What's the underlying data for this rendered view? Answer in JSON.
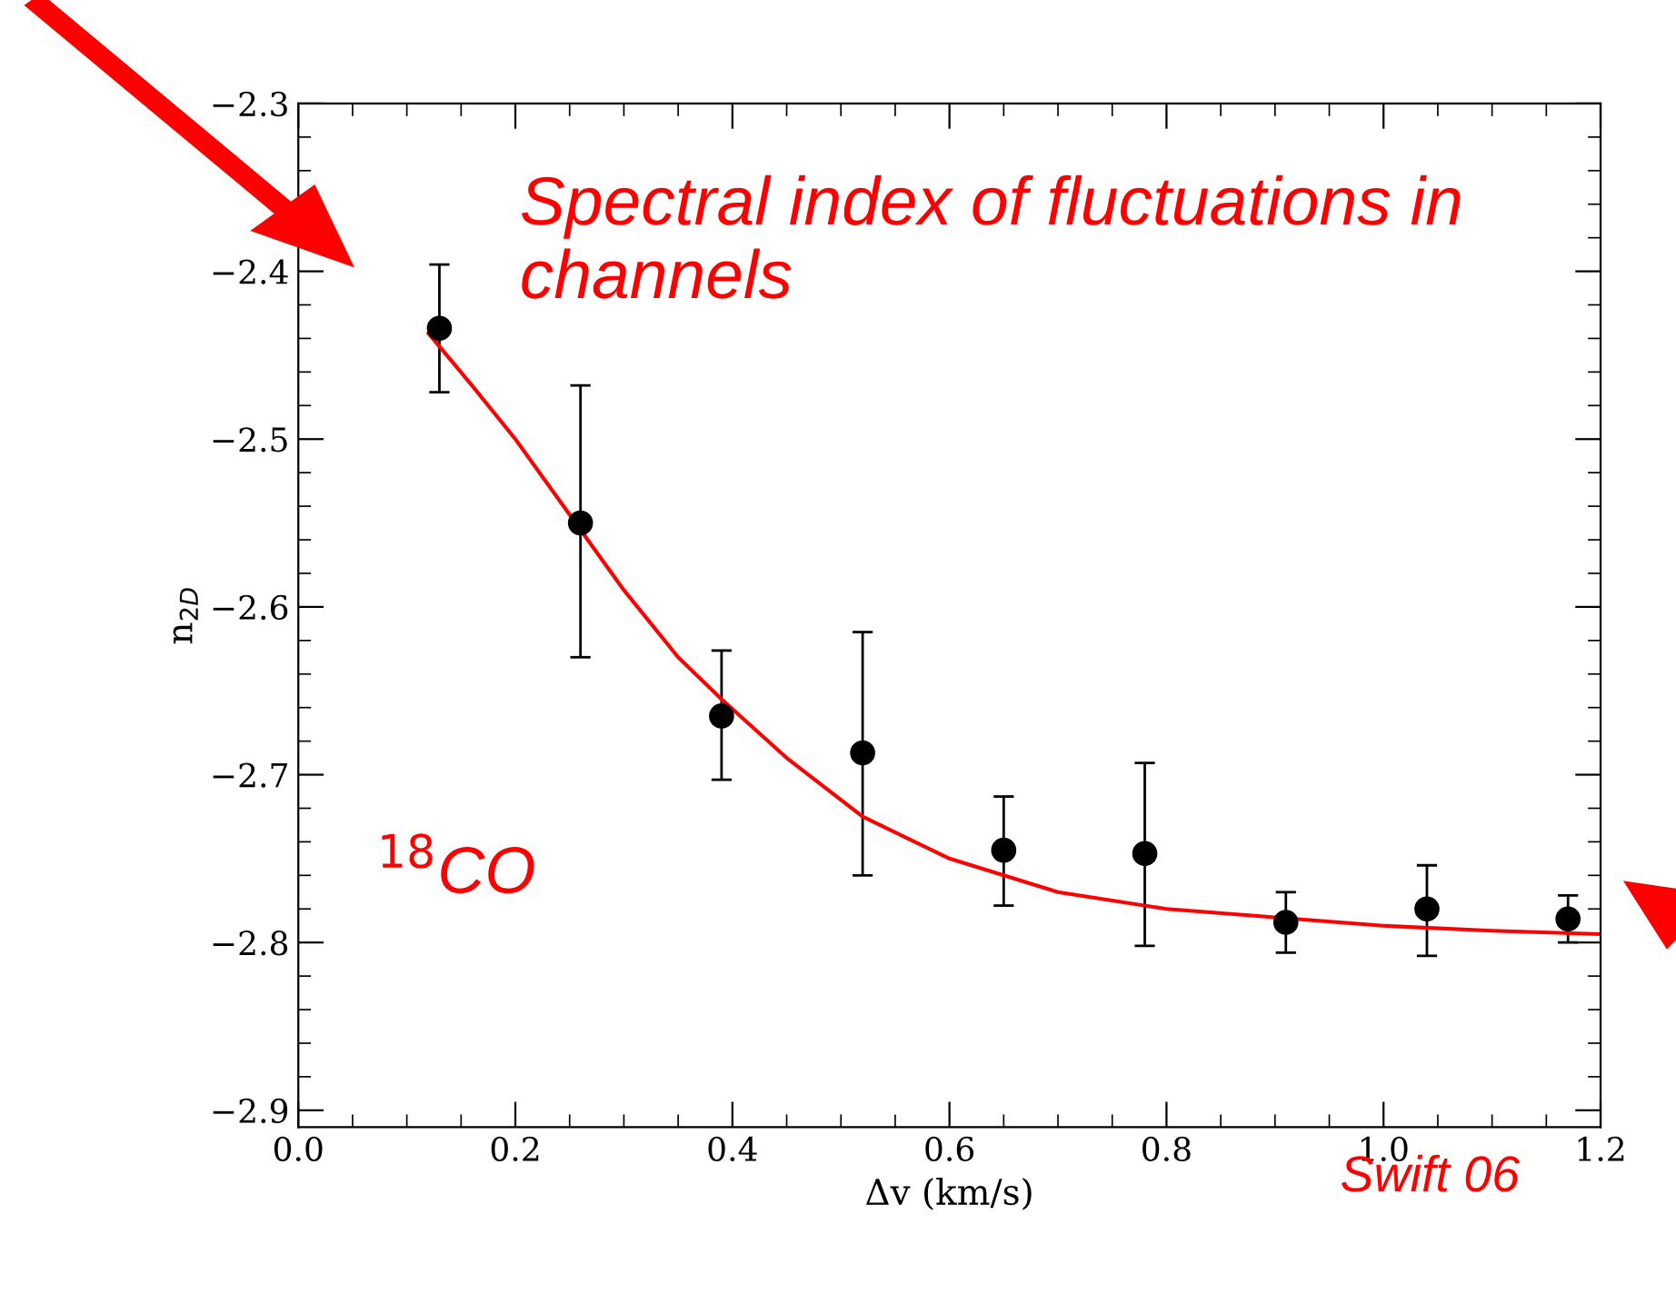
{
  "chart_data": {
    "type": "scatter",
    "xlabel": "Δv (km/s)",
    "ylabel": "n$_{2D}$",
    "xlim": [
      0,
      1.2
    ],
    "xticks": [
      {
        "value": 0,
        "label": "0.0"
      },
      0.2,
      0.4,
      0.6,
      0.8,
      {
        "value": 1,
        "label": "1.0"
      },
      1.2
    ],
    "ylim": [
      -2.91,
      -2.3
    ],
    "yticks": [
      {
        "value": -2.3,
        "label": "−2.3"
      },
      {
        "value": -2.4,
        "label": "−2.4"
      },
      {
        "value": -2.5,
        "label": "−2.5"
      },
      {
        "value": -2.6,
        "label": "−2.6"
      },
      {
        "value": -2.7,
        "label": "−2.7"
      },
      {
        "value": -2.8,
        "label": "−2.8"
      },
      {
        "value": -2.9,
        "label": "−2.9"
      }
    ],
    "grid": false,
    "legend": false,
    "series": [
      {
        "color": "#000000",
        "marker": "circle",
        "x": [
          0.13,
          0.26,
          0.39,
          0.52,
          0.65,
          0.78,
          0.91,
          1.04,
          1.17
        ],
        "values": [
          -2.434,
          -2.55,
          -2.665,
          -2.687,
          -2.745,
          -2.747,
          -2.788,
          -2.78,
          -2.786
        ],
        "errors": [
          [
            -2.472,
            -2.396
          ],
          [
            -2.63,
            -2.468
          ],
          [
            -2.703,
            -2.626
          ],
          [
            -2.76,
            -2.615
          ],
          [
            -2.778,
            -2.713
          ],
          [
            -2.802,
            -2.693
          ],
          [
            -2.806,
            -2.77
          ],
          [
            -2.808,
            -2.754
          ],
          [
            -2.8,
            -2.772
          ]
        ]
      },
      {
        "type": "line",
        "color": "#ff0000",
        "line_style": "solid",
        "marker": "none",
        "x": [
          0.12,
          0.16,
          0.2,
          0.3,
          0.35,
          0.39,
          0.45,
          0.52,
          0.6,
          0.7,
          0.8,
          0.9,
          1.0,
          1.1,
          1.2
        ],
        "values": [
          -2.437,
          -2.468,
          -2.5,
          -2.59,
          -2.63,
          -2.655,
          -2.69,
          -2.725,
          -2.75,
          -2.77,
          -2.78,
          -2.785,
          -2.79,
          -2.793,
          -2.795
        ]
      }
    ],
    "annotations": [
      "Spectral index of fluctuations in channels",
      "$^{18}$CO",
      "Swift 06"
    ]
  }
}
